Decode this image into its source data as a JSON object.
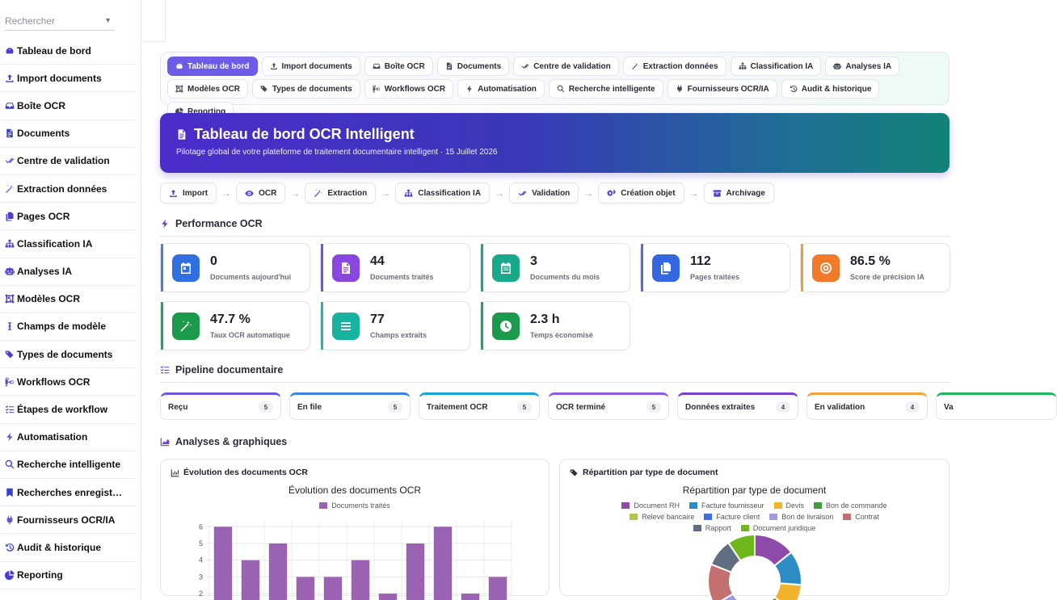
{
  "search": {
    "placeholder": "Rechercher"
  },
  "sidebar": {
    "items": [
      {
        "label": "Tableau de bord",
        "icon": "gauge-icon",
        "slug": "tableau-de-bord"
      },
      {
        "label": "Import documents",
        "icon": "upload-icon",
        "slug": "import-documents"
      },
      {
        "label": "Boîte OCR",
        "icon": "inbox-icon",
        "slug": "boite-ocr"
      },
      {
        "label": "Documents",
        "icon": "file-icon",
        "slug": "documents"
      },
      {
        "label": "Centre de validation",
        "icon": "check-double-icon",
        "slug": "centre-de-validation"
      },
      {
        "label": "Extraction données",
        "icon": "magic-wand-icon",
        "slug": "extraction-donnees"
      },
      {
        "label": "Pages OCR",
        "icon": "copy-icon",
        "slug": "pages-ocr"
      },
      {
        "label": "Classification IA",
        "icon": "sitemap-icon",
        "slug": "classification-ia"
      },
      {
        "label": "Analyses IA",
        "icon": "robot-icon",
        "slug": "analyses-ia"
      },
      {
        "label": "Modèles OCR",
        "icon": "object-group-icon",
        "slug": "modeles-ocr"
      },
      {
        "label": "Champs de modèle",
        "icon": "text-cursor-icon",
        "slug": "champs-de-modele"
      },
      {
        "label": "Types de documents",
        "icon": "tags-icon",
        "slug": "types-de-documents"
      },
      {
        "label": "Workflows OCR",
        "icon": "workflow-icon",
        "slug": "workflows-ocr"
      },
      {
        "label": "Étapes de workflow",
        "icon": "list-check-icon",
        "slug": "etapes-de-workflow"
      },
      {
        "label": "Automatisation",
        "icon": "bolt-icon",
        "slug": "automatisation"
      },
      {
        "label": "Recherche intelligente",
        "icon": "search-icon",
        "slug": "recherche-intelligente"
      },
      {
        "label": "Recherches enregist…",
        "icon": "bookmark-icon",
        "slug": "recherches-enregistrees"
      },
      {
        "label": "Fournisseurs OCR/IA",
        "icon": "plug-icon",
        "slug": "fournisseurs-ocr-ia"
      },
      {
        "label": "Audit & historique",
        "icon": "history-icon",
        "slug": "audit-historique"
      },
      {
        "label": "Reporting",
        "icon": "chart-pie-icon",
        "slug": "reporting"
      }
    ]
  },
  "tabs": [
    {
      "label": "Tableau de bord",
      "icon": "gauge-icon",
      "slug": "tableau-de-bord",
      "active": true
    },
    {
      "label": "Import documents",
      "icon": "upload-icon",
      "slug": "import-documents"
    },
    {
      "label": "Boîte OCR",
      "icon": "inbox-icon",
      "slug": "boite-ocr"
    },
    {
      "label": "Documents",
      "icon": "file-icon",
      "slug": "documents"
    },
    {
      "label": "Centre de validation",
      "icon": "check-double-icon",
      "slug": "centre-de-validation"
    },
    {
      "label": "Extraction données",
      "icon": "magic-wand-icon",
      "slug": "extraction-donnees"
    },
    {
      "label": "Classification IA",
      "icon": "sitemap-icon",
      "slug": "classification-ia"
    },
    {
      "label": "Analyses IA",
      "icon": "robot-icon",
      "slug": "analyses-ia"
    },
    {
      "label": "Modèles OCR",
      "icon": "object-group-icon",
      "slug": "modeles-ocr"
    },
    {
      "label": "Types de documents",
      "icon": "tags-icon",
      "slug": "types-de-documents"
    },
    {
      "label": "Workflows OCR",
      "icon": "workflow-icon",
      "slug": "workflows-ocr"
    },
    {
      "label": "Automatisation",
      "icon": "bolt-icon",
      "slug": "automatisation"
    },
    {
      "label": "Recherche intelligente",
      "icon": "search-icon",
      "slug": "recherche-intelligente"
    },
    {
      "label": "Fournisseurs OCR/IA",
      "icon": "plug-icon",
      "slug": "fournisseurs-ocr-ia"
    },
    {
      "label": "Audit & historique",
      "icon": "history-icon",
      "slug": "audit-historique"
    },
    {
      "label": "Reporting",
      "icon": "chart-pie-icon",
      "slug": "reporting"
    }
  ],
  "hero": {
    "title": "Tableau de bord OCR Intelligent",
    "subtitle": "Pilotage global de votre plateforme de traitement documentaire intelligent · 15 Juillet 2026",
    "icon": "file-icon"
  },
  "steps": [
    {
      "label": "Import",
      "icon": "upload-icon",
      "slug": "import"
    },
    {
      "label": "OCR",
      "icon": "eye-icon",
      "slug": "ocr"
    },
    {
      "label": "Extraction",
      "icon": "magic-wand-icon",
      "slug": "extraction"
    },
    {
      "label": "Classification IA",
      "icon": "sitemap-icon",
      "slug": "classification-ia"
    },
    {
      "label": "Validation",
      "icon": "check-double-icon",
      "slug": "validation"
    },
    {
      "label": "Création objet",
      "icon": "cogs-icon",
      "slug": "creation-objet"
    },
    {
      "label": "Archivage",
      "icon": "archive-icon",
      "slug": "archivage"
    }
  ],
  "performance": {
    "title": "Performance OCR",
    "icon": "bolt-icon",
    "kpis": [
      {
        "value": "0",
        "label": "Documents aujourd'hui",
        "icon": "calendar-day-icon",
        "color": "#2f6fe0",
        "accent": "#4f7be8"
      },
      {
        "value": "44",
        "label": "Documents traités",
        "icon": "file-icon",
        "color": "#8a47e0",
        "accent": "#7b4fe0"
      },
      {
        "value": "3",
        "label": "Documents du mois",
        "icon": "calendar-icon",
        "color": "#18a88a",
        "accent": "#17a98f"
      },
      {
        "value": "112",
        "label": "Pages traitées",
        "icon": "copy-icon",
        "color": "#3467e0",
        "accent": "#5b6ae0"
      },
      {
        "value": "86.5 %",
        "label": "Score de précision IA",
        "icon": "bullseye-icon",
        "color": "#f07a2a",
        "accent": "#f39a3a"
      },
      {
        "value": "47.7 %",
        "label": "Taux OCR automatique",
        "icon": "magic-wand-icon",
        "color": "#1a9a4a",
        "accent": "#22a855"
      },
      {
        "value": "77",
        "label": "Champs extraits",
        "icon": "list-icon",
        "color": "#17b3a0",
        "accent": "#27b7a2"
      },
      {
        "value": "2.3 h",
        "label": "Temps économisé",
        "icon": "clock-icon",
        "color": "#1a9a4a",
        "accent": "#22a855"
      }
    ]
  },
  "pipeline": {
    "title": "Pipeline documentaire",
    "icon": "list-check-icon",
    "stages": [
      {
        "label": "Reçu",
        "count": "5",
        "accent": "#6a56e0"
      },
      {
        "label": "En file",
        "count": "5",
        "accent": "#3f7de8"
      },
      {
        "label": "Traitement OCR",
        "count": "5",
        "accent": "#1aa3d9"
      },
      {
        "label": "OCR terminé",
        "count": "5",
        "accent": "#8b5ae8"
      },
      {
        "label": "Données extraites",
        "count": "4",
        "accent": "#7a3fd6"
      },
      {
        "label": "En validation",
        "count": "4",
        "accent": "#f2a23a"
      },
      {
        "label": "Va",
        "count": "",
        "accent": "#22b45a"
      }
    ]
  },
  "analyses": {
    "title": "Analyses & graphiques",
    "icon": "chart-area-icon"
  },
  "charts": {
    "evolution": {
      "header": "Évolution des documents OCR",
      "header_icon": "chart-line-icon"
    },
    "repartition": {
      "header": "Répartition par type de document",
      "header_icon": "tags-icon"
    }
  },
  "chart_data": [
    {
      "type": "bar",
      "title": "Évolution des documents OCR",
      "series": [
        {
          "name": "Documents traités",
          "color": "#9b62b3",
          "values": [
            6,
            4,
            5,
            3,
            3,
            4,
            2,
            5,
            6,
            2,
            3
          ]
        }
      ],
      "ylim": [
        1.5,
        6.4
      ],
      "yticks": [
        2,
        3,
        4,
        5,
        6
      ],
      "grid": true,
      "legend": "top"
    },
    {
      "type": "pie",
      "donut": true,
      "title": "Répartition par type de document",
      "labels": [
        "Document RH",
        "Facture fournisseur",
        "Devis",
        "Bon de commande",
        "Relevé bancaire",
        "Facture client",
        "Bon de livraison",
        "Contrat",
        "Rapport",
        "Document juridique"
      ],
      "colors": [
        "#8e4aa8",
        "#2b8dc4",
        "#f0b52d",
        "#3f9d3c",
        "#b7c34a",
        "#3a6fe6",
        "#9a9be0",
        "#c47070",
        "#5f6e80",
        "#6fb81c"
      ],
      "values": [
        6,
        5,
        4,
        3,
        3,
        4,
        3,
        6,
        4,
        4
      ],
      "legend": "top"
    }
  ]
}
